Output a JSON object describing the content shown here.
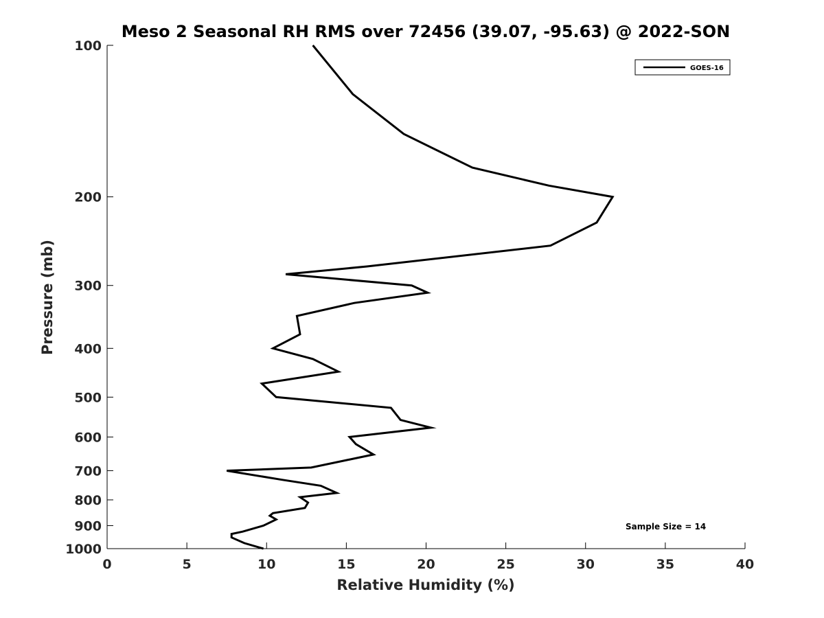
{
  "chart_data": {
    "type": "line",
    "title": "Meso 2 Seasonal RH RMS over 72456 (39.07, -95.63) @ 2022-SON",
    "xlabel": "Relative Humidity (%)",
    "ylabel": "Pressure (mb)",
    "xlim": [
      0,
      40
    ],
    "ylim": [
      100,
      1000
    ],
    "y_scale": "log",
    "y_reversed": true,
    "x_ticks": [
      0,
      5,
      10,
      15,
      20,
      25,
      30,
      35,
      40
    ],
    "x_tick_labels": [
      "0",
      "5",
      "10",
      "15",
      "20",
      "25",
      "30",
      "35",
      "40"
    ],
    "y_ticks": [
      100,
      200,
      300,
      400,
      500,
      600,
      700,
      800,
      900,
      1000
    ],
    "y_tick_labels": [
      "100",
      "200",
      "300",
      "400",
      "500",
      "600",
      "700",
      "800",
      "900",
      "1000"
    ],
    "grid": false,
    "legend_position": "top-right",
    "annotation": "Sample Size = 14",
    "series": [
      {
        "name": "GOES-16",
        "color": "#000000",
        "points": [
          [
            12.9,
            100
          ],
          [
            15.4,
            125
          ],
          [
            18.6,
            150
          ],
          [
            22.9,
            175
          ],
          [
            27.7,
            190
          ],
          [
            31.7,
            200
          ],
          [
            30.7,
            225
          ],
          [
            27.8,
            250
          ],
          [
            16.3,
            275
          ],
          [
            11.2,
            285
          ],
          [
            19.1,
            300
          ],
          [
            20.1,
            310
          ],
          [
            15.5,
            325
          ],
          [
            11.9,
            345
          ],
          [
            12.1,
            375
          ],
          [
            10.4,
            400
          ],
          [
            12.9,
            420
          ],
          [
            14.5,
            445
          ],
          [
            9.7,
            470
          ],
          [
            10.6,
            500
          ],
          [
            17.8,
            525
          ],
          [
            18.4,
            555
          ],
          [
            20.3,
            575
          ],
          [
            15.2,
            600
          ],
          [
            15.6,
            620
          ],
          [
            16.7,
            650
          ],
          [
            12.8,
            690
          ],
          [
            7.5,
            700
          ],
          [
            11.0,
            730
          ],
          [
            13.4,
            750
          ],
          [
            14.4,
            775
          ],
          [
            12.1,
            790
          ],
          [
            12.6,
            810
          ],
          [
            12.4,
            830
          ],
          [
            10.4,
            850
          ],
          [
            10.2,
            860
          ],
          [
            10.6,
            875
          ],
          [
            9.8,
            900
          ],
          [
            8.5,
            925
          ],
          [
            7.8,
            935
          ],
          [
            7.8,
            950
          ],
          [
            8.6,
            975
          ],
          [
            9.8,
            1000
          ]
        ]
      }
    ]
  }
}
